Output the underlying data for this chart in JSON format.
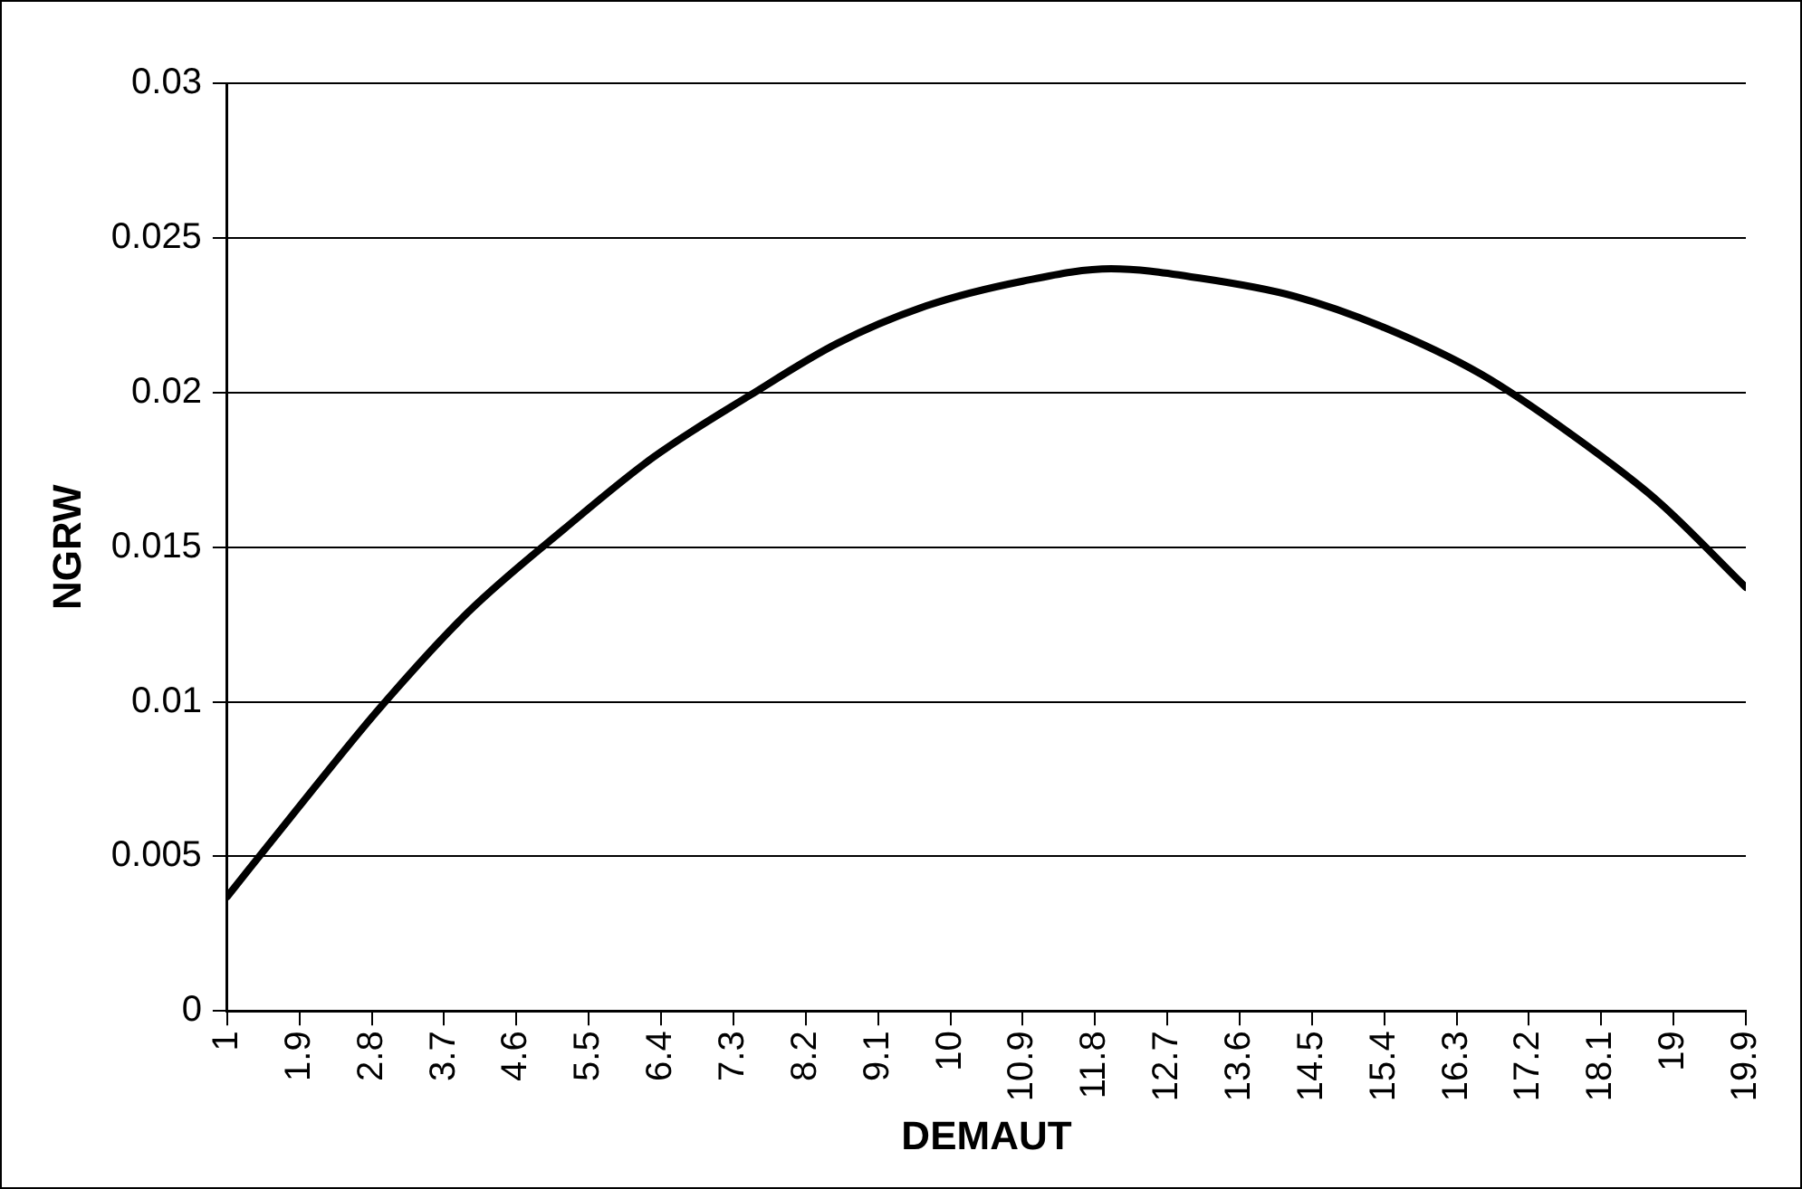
{
  "chart_data": {
    "type": "line",
    "xlabel": "DEMAUT",
    "ylabel": "NGRW",
    "x": [
      1,
      1.8,
      2.9,
      4,
      5.2,
      6.3,
      7.5,
      8.6,
      9.7,
      10.9,
      12,
      13.1,
      14.3,
      15.4,
      16.6,
      17.7,
      18.8,
      19.9
    ],
    "series": [
      {
        "color": "#000000",
        "values": [
          0.0037,
          0.0063,
          0.0098,
          0.0129,
          0.0156,
          0.0179,
          0.0199,
          0.0216,
          0.0228,
          0.0236,
          0.024,
          0.0237,
          0.0231,
          0.0221,
          0.0206,
          0.0187,
          0.0165,
          0.0137
        ]
      }
    ],
    "xlim": [
      1,
      19.9
    ],
    "xticks": [
      1,
      1.9,
      2.8,
      3.7,
      4.6,
      5.5,
      6.4,
      7.3,
      8.2,
      9.1,
      10,
      10.9,
      11.8,
      12.7,
      13.6,
      14.5,
      15.4,
      16.3,
      17.2,
      18.1,
      19,
      19.9
    ],
    "ylim": [
      0,
      0.03
    ],
    "yticks": [
      0,
      0.005,
      0.01,
      0.015,
      0.02,
      0.025,
      0.03
    ],
    "grid": "y",
    "legend": false,
    "marker": "none",
    "line_style": "solid"
  }
}
